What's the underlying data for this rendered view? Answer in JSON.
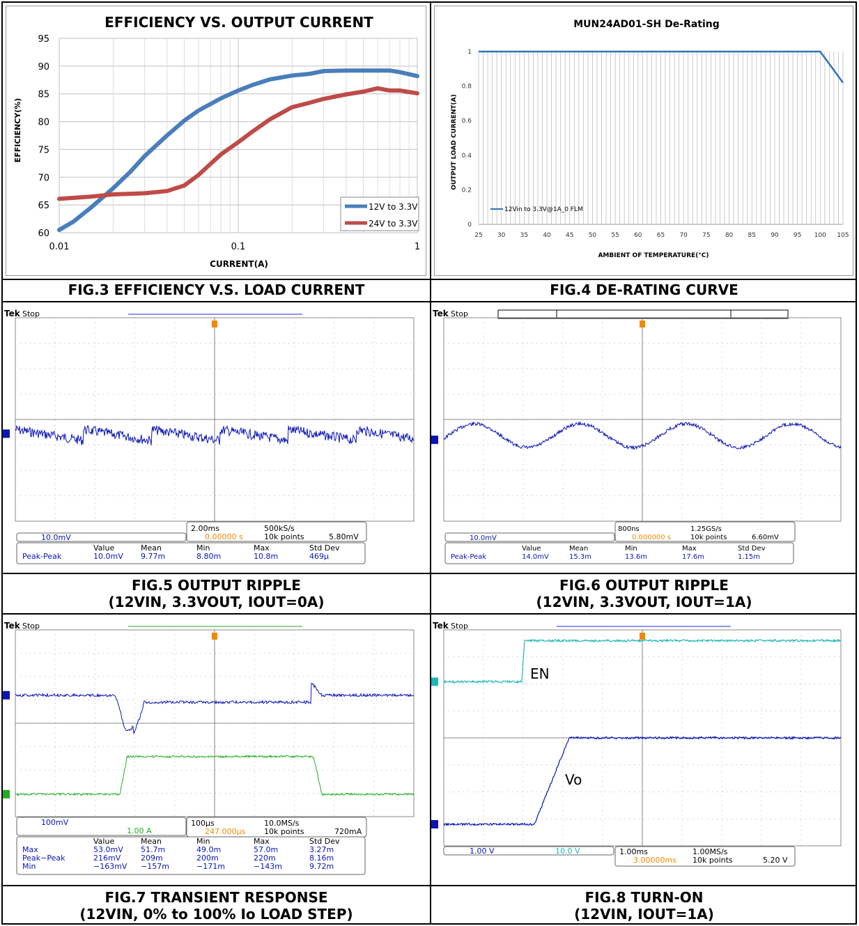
{
  "captions": {
    "fig3": "FIG.3 EFFICIENCY V.S. LOAD CURRENT",
    "fig4": "FIG.4 DE-RATING CURVE",
    "fig5_line1": "FIG.5 OUTPUT RIPPLE",
    "fig5_line2": "(12VIN, 3.3VOUT, IOUT=0A)",
    "fig6_line1": "FIG.6 OUTPUT RIPPLE",
    "fig6_line2": "(12VIN, 3.3VOUT, IOUT=1A)",
    "fig7_line1": "FIG.7 TRANSIENT RESPONSE",
    "fig7_line2": "(12VIN, 0% to 100% Io LOAD STEP)",
    "fig8_line1": "FIG.8 TURN-ON",
    "fig8_line2": "(12VIN, IOUT=1A)"
  },
  "chart_data": [
    {
      "type": "line",
      "title": "EFFICIENCY VS. OUTPUT CURRENT",
      "xlabel": "CURRENT(A)",
      "ylabel": "EFFICIENCY(%)",
      "xscale": "log",
      "xlim": [
        0.01,
        1
      ],
      "ylim": [
        60,
        95
      ],
      "xticks": [
        "0.01",
        "0.1",
        "1"
      ],
      "yticks": [
        "60",
        "65",
        "70",
        "75",
        "80",
        "85",
        "90",
        "95"
      ],
      "grid": true,
      "legend": "bottom-right",
      "series": [
        {
          "name": "12V to 3.3V",
          "color": "#4a7ebb",
          "x": [
            0.01,
            0.012,
            0.015,
            0.02,
            0.025,
            0.03,
            0.04,
            0.05,
            0.06,
            0.08,
            0.1,
            0.12,
            0.15,
            0.2,
            0.25,
            0.3,
            0.4,
            0.5,
            0.6,
            0.7,
            0.8,
            1.0
          ],
          "y": [
            60.5,
            62.0,
            64.5,
            68.0,
            71.0,
            73.8,
            77.5,
            80.2,
            82.0,
            84.2,
            85.6,
            86.6,
            87.6,
            88.3,
            88.6,
            89.1,
            89.2,
            89.2,
            89.2,
            89.2,
            88.9,
            88.2
          ]
        },
        {
          "name": "24V to 3.3V",
          "color": "#be4b48",
          "x": [
            0.01,
            0.015,
            0.02,
            0.03,
            0.04,
            0.05,
            0.06,
            0.07,
            0.08,
            0.1,
            0.12,
            0.15,
            0.2,
            0.25,
            0.3,
            0.4,
            0.5,
            0.6,
            0.7,
            0.8,
            1.0
          ],
          "y": [
            66.1,
            66.5,
            66.9,
            67.1,
            67.5,
            68.5,
            70.4,
            72.4,
            74.1,
            76.3,
            78.2,
            80.4,
            82.6,
            83.4,
            84.1,
            84.9,
            85.4,
            86.0,
            85.6,
            85.6,
            85.1
          ]
        }
      ]
    },
    {
      "type": "line",
      "title": "MUN24AD01-SH De-Rating",
      "xlabel": "AMBIENT OF TEMPERATURE(°C)",
      "ylabel": "OUTPUT LOAD CURRENT(A)",
      "xlim": [
        25,
        105
      ],
      "ylim": [
        0,
        1
      ],
      "xticks": [
        "25",
        "30",
        "35",
        "40",
        "45",
        "50",
        "55",
        "60",
        "65",
        "70",
        "75",
        "80",
        "85",
        "90",
        "95",
        "100",
        "105"
      ],
      "yticks": [
        "0",
        "0.2",
        "0.4",
        "0.6",
        "0.8",
        "1"
      ],
      "grid": true,
      "legend": "bottom-left",
      "series": [
        {
          "name": "12Vin to 3.3V@1A_0 FLM",
          "color": "#2e75b6",
          "x": [
            25,
            100,
            105
          ],
          "y": [
            1,
            1,
            0.82
          ]
        }
      ]
    }
  ],
  "scopes": {
    "fig5": {
      "brand": "Tek",
      "state": "Stop",
      "ch1_scale": "10.0mV",
      "timebase": "2.00ms",
      "sample_rate": "500kS/s",
      "trigger_pos": "0.00000 s",
      "record": "10k points",
      "trigger_level": "5.80mV",
      "meas_headers": [
        "Value",
        "Mean",
        "Min",
        "Max",
        "Std Dev"
      ],
      "meas_rows": [
        {
          "label": "Peak-Peak",
          "values": [
            "10.0mV",
            "9.77m",
            "8.80m",
            "10.8m",
            "469µ"
          ]
        }
      ]
    },
    "fig6": {
      "brand": "Tek",
      "state": "Stop",
      "ch1_scale": "10.0mV",
      "timebase": "800ns",
      "sample_rate": "1.25GS/s",
      "trigger_pos": "0.000000 s",
      "record": "10k points",
      "trigger_level": "6.60mV",
      "meas_headers": [
        "Value",
        "Mean",
        "Min",
        "Max",
        "Std Dev"
      ],
      "meas_rows": [
        {
          "label": "Peak-Peak",
          "values": [
            "14.0mV",
            "15.3m",
            "13.6m",
            "17.6m",
            "1.15m"
          ]
        }
      ]
    },
    "fig7": {
      "brand": "Tek",
      "state": "Stop",
      "ch1_scale": "100mV",
      "ch4_scale": "1.00 A",
      "timebase": "100µs",
      "sample_rate": "10.0MS/s",
      "trigger_pos": "247.000µs",
      "record": "10k points",
      "trigger_level": "720mA",
      "meas_headers": [
        "Value",
        "Mean",
        "Min",
        "Max",
        "Std Dev"
      ],
      "meas_rows": [
        {
          "label": "Max",
          "values": [
            "53.0mV",
            "51.7m",
            "49.0m",
            "57.0m",
            "3.27m"
          ]
        },
        {
          "label": "Peak−Peak",
          "values": [
            "216mV",
            "209m",
            "200m",
            "220m",
            "8.16m"
          ]
        },
        {
          "label": "Min",
          "values": [
            "−163mV",
            "−157m",
            "−171m",
            "−143m",
            "9.72m"
          ]
        }
      ]
    },
    "fig8": {
      "brand": "Tek",
      "state": "Stop",
      "ch1_scale": "1.00 V",
      "ch2_scale": "10.0 V",
      "timebase": "1.00ms",
      "sample_rate": "1.00MS/s",
      "trigger_pos": "3.00000ms",
      "record": "10k points",
      "trigger_level": "5.20 V",
      "label_en": "EN",
      "label_vo": "Vo"
    }
  },
  "colors": {
    "ch1": "#0a14b4",
    "ch2": "#1fb6b6",
    "ch4": "#22aa22",
    "trigger": "#f08a00"
  }
}
